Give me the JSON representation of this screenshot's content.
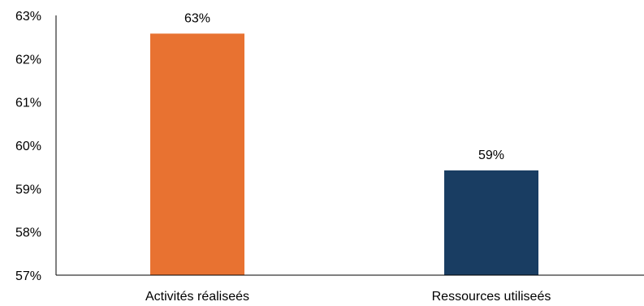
{
  "chart_data": {
    "type": "bar",
    "categories": [
      "Activités réaliseés",
      "Ressources utiliseés"
    ],
    "values": [
      62.58,
      59.42
    ],
    "data_labels": [
      "63%",
      "59%"
    ],
    "ylim": [
      57,
      63
    ],
    "yticks": [
      57,
      58,
      59,
      60,
      61,
      62,
      63
    ],
    "ytick_labels": [
      "57%",
      "58%",
      "59%",
      "60%",
      "61%",
      "62%",
      "63%"
    ],
    "colors": [
      "#E87231",
      "#193D62"
    ],
    "grid": false,
    "legend": "none"
  }
}
